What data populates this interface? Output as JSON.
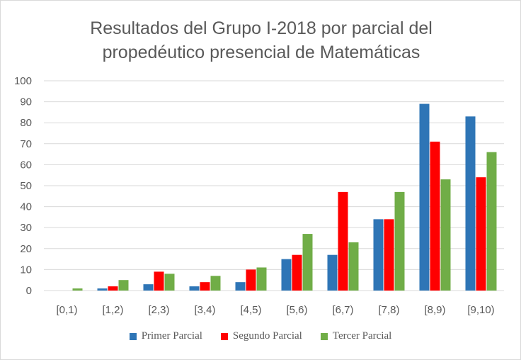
{
  "chart_data": {
    "type": "bar",
    "title_line1": "Resultados del Grupo I-2018 por parcial del",
    "title_line2": "propedéutico presencial de Matemáticas",
    "xlabel": "",
    "ylabel": "",
    "ylim": [
      0,
      100
    ],
    "yticks": [
      0,
      10,
      20,
      30,
      40,
      50,
      60,
      70,
      80,
      90,
      100
    ],
    "grid": true,
    "legend_position": "bottom",
    "categories": [
      "[0,1)",
      "[1,2)",
      "[2,3)",
      "[3,4)",
      "[4,5)",
      "[5,6)",
      "[6,7)",
      "[7,8)",
      "[8,9)",
      "[9,10)"
    ],
    "series": [
      {
        "name": "Primer Parcial",
        "color": "#2e75b6",
        "values": [
          0,
          1,
          3,
          2,
          4,
          15,
          17,
          34,
          89,
          83
        ]
      },
      {
        "name": "Segundo Parcial",
        "color": "#ff0000",
        "values": [
          0,
          2,
          9,
          4,
          10,
          17,
          47,
          34,
          71,
          54
        ]
      },
      {
        "name": "Tercer Parcial",
        "color": "#70ad47",
        "values": [
          1,
          5,
          8,
          7,
          11,
          27,
          23,
          47,
          53,
          66
        ]
      }
    ]
  }
}
